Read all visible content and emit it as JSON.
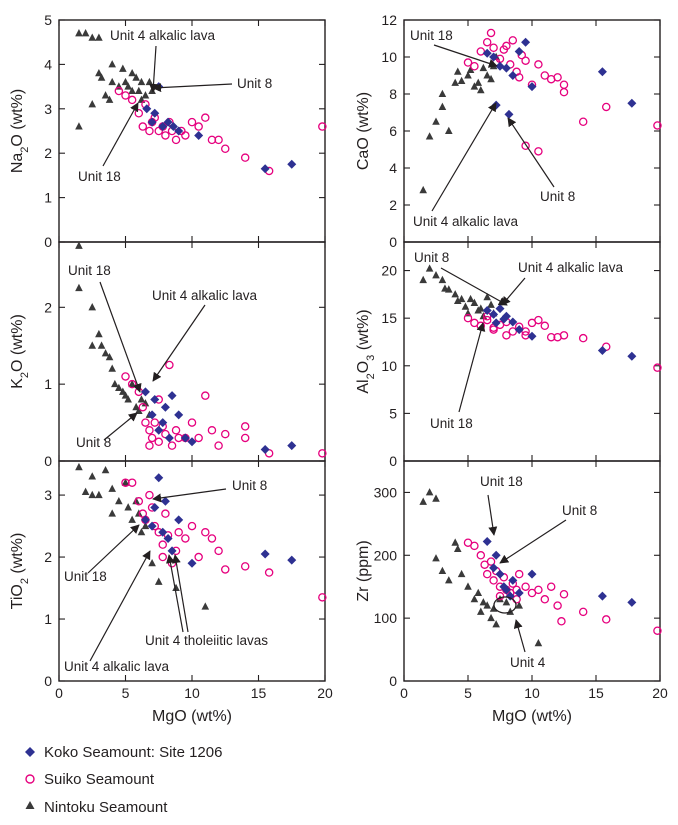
{
  "colors": {
    "koko": "#2e3192",
    "suiko": "#e6007e",
    "nintoku": "#3a3a3a",
    "ink": "#231f20"
  },
  "legend": [
    {
      "label": "Koko Seamount: Site 1206",
      "marker": "diamond",
      "color": "#2e3192"
    },
    {
      "label": "Suiko Seamount",
      "marker": "open-circle",
      "color": "#e6007e"
    },
    {
      "label": "Nintoku Seamount",
      "marker": "triangle",
      "color": "#3a3a3a"
    }
  ],
  "chart_data": [
    {
      "type": "scatter",
      "id": "na2o",
      "xlabel": "",
      "ylabel": "Na2O (wt%)",
      "xlim": [
        0,
        20
      ],
      "ylim": [
        0,
        5
      ],
      "xticks": [
        0,
        5,
        10,
        15,
        20
      ],
      "yticks": [
        0,
        1,
        2,
        3,
        4,
        5
      ],
      "xticklabels": [],
      "yticklabels": [
        "0",
        "1",
        "2",
        "3",
        "4",
        "5"
      ],
      "series": [
        {
          "name": "Koko Seamount: Site 1206",
          "marker": "diamond",
          "x": [
            6.6,
            7.0,
            7.2,
            7.5,
            7.8,
            8.2,
            8.6,
            9.0,
            10.5,
            15.5,
            17.5
          ],
          "y": [
            3.0,
            2.7,
            2.9,
            3.5,
            2.6,
            2.7,
            2.6,
            2.5,
            2.4,
            1.65,
            1.75
          ]
        },
        {
          "name": "Suiko Seamount",
          "marker": "open-circle",
          "x": [
            4.5,
            5.0,
            5.5,
            6.0,
            6.3,
            6.5,
            6.8,
            7.0,
            7.2,
            7.5,
            7.8,
            8.0,
            8.3,
            8.5,
            8.8,
            9.2,
            9.5,
            10.0,
            10.5,
            11.0,
            11.5,
            12.0,
            12.5,
            14.0,
            15.8,
            19.8
          ],
          "y": [
            3.4,
            3.3,
            3.2,
            2.9,
            2.6,
            3.1,
            2.5,
            2.7,
            2.8,
            2.5,
            2.6,
            2.4,
            2.7,
            2.5,
            2.3,
            2.5,
            2.4,
            2.7,
            2.6,
            2.8,
            2.3,
            2.3,
            2.1,
            1.9,
            1.6,
            2.6
          ]
        },
        {
          "name": "Nintoku Seamount",
          "marker": "triangle",
          "x": [
            1.5,
            2.0,
            2.5,
            3.0,
            3.2,
            3.5,
            4.0,
            4.0,
            4.5,
            4.8,
            5.0,
            5.2,
            5.5,
            5.8,
            6.0,
            6.2,
            6.5,
            6.8,
            7.0,
            1.5,
            2.5,
            3.0,
            3.8,
            5.5,
            6.2
          ],
          "y": [
            4.7,
            4.7,
            4.6,
            4.6,
            3.7,
            3.3,
            3.6,
            4.0,
            3.5,
            3.9,
            3.6,
            3.5,
            3.8,
            3.7,
            3.4,
            3.6,
            3.3,
            3.6,
            3.4,
            2.6,
            3.1,
            3.8,
            3.2,
            3.4,
            3.2
          ]
        }
      ],
      "annotations": [
        "Unit 4 alkalic lava",
        "Unit 8",
        "Unit 18"
      ]
    },
    {
      "type": "scatter",
      "id": "cao",
      "xlabel": "",
      "ylabel": "CaO (wt%)",
      "xlim": [
        0,
        20
      ],
      "ylim": [
        0,
        12
      ],
      "xticks": [
        0,
        5,
        10,
        15,
        20
      ],
      "yticks": [
        0,
        2,
        4,
        6,
        8,
        10,
        12
      ],
      "xticklabels": [],
      "yticklabels": [
        "0",
        "2",
        "4",
        "6",
        "8",
        "10",
        "12"
      ],
      "series": [
        {
          "name": "Koko Seamount: Site 1206",
          "marker": "diamond",
          "x": [
            6.5,
            7.0,
            7.5,
            8.0,
            8.5,
            9.0,
            10.0,
            7.2,
            8.2,
            15.5,
            17.8,
            9.5
          ],
          "y": [
            10.2,
            10.0,
            9.5,
            9.4,
            9.0,
            10.3,
            8.4,
            7.4,
            6.9,
            9.2,
            7.5,
            10.8
          ]
        },
        {
          "name": "Suiko Seamount",
          "marker": "open-circle",
          "x": [
            5.0,
            5.5,
            6.0,
            6.5,
            6.8,
            7.0,
            7.2,
            7.5,
            7.8,
            8.0,
            8.3,
            8.5,
            8.8,
            9.0,
            9.2,
            9.5,
            10.0,
            10.5,
            11.0,
            11.5,
            12.0,
            12.5,
            12.5,
            14.0,
            15.8,
            19.8,
            9.5,
            10.5
          ],
          "y": [
            9.7,
            9.5,
            10.3,
            10.8,
            11.3,
            10.5,
            9.7,
            9.9,
            10.4,
            10.6,
            9.6,
            10.9,
            9.2,
            8.9,
            10.1,
            9.8,
            8.5,
            9.6,
            9.0,
            8.8,
            8.9,
            8.5,
            8.1,
            6.5,
            7.3,
            6.3,
            5.2,
            4.9
          ]
        },
        {
          "name": "Nintoku Seamount",
          "marker": "triangle",
          "x": [
            1.5,
            2.0,
            2.5,
            3.0,
            3.0,
            3.5,
            4.0,
            4.2,
            4.5,
            5.0,
            5.2,
            5.5,
            5.8,
            6.0,
            6.2,
            6.5,
            6.8,
            7.0,
            7.2
          ],
          "y": [
            2.8,
            5.7,
            6.5,
            7.3,
            8.0,
            6.0,
            8.6,
            9.2,
            8.7,
            9.0,
            9.3,
            8.4,
            8.6,
            8.2,
            9.4,
            9.0,
            8.8,
            9.5,
            10.0
          ]
        }
      ],
      "annotations": [
        "Unit 18",
        "Unit 8",
        "Unit 4 alkalic lava"
      ]
    },
    {
      "type": "scatter",
      "id": "k2o",
      "xlabel": "",
      "ylabel": "K2O (wt%)",
      "xlim": [
        0,
        20
      ],
      "ylim": [
        0,
        2.85
      ],
      "xticks": [
        0,
        5,
        10,
        15,
        20
      ],
      "yticks": [
        0,
        1,
        2
      ],
      "xticklabels": [],
      "yticklabels": [
        "0",
        "1",
        "2"
      ],
      "series": [
        {
          "name": "Koko Seamount: Site 1206",
          "marker": "diamond",
          "x": [
            6.5,
            7.0,
            7.2,
            7.5,
            7.8,
            8.0,
            8.3,
            8.5,
            9.0,
            9.5,
            10.0,
            15.5,
            17.5
          ],
          "y": [
            0.9,
            0.6,
            0.8,
            0.4,
            0.5,
            0.7,
            0.3,
            0.85,
            0.6,
            0.3,
            0.25,
            0.15,
            0.2
          ]
        },
        {
          "name": "Suiko Seamount",
          "marker": "open-circle",
          "x": [
            5.0,
            5.5,
            6.0,
            6.3,
            6.5,
            6.8,
            7.0,
            7.2,
            7.5,
            7.8,
            8.0,
            8.3,
            8.5,
            8.8,
            9.0,
            9.5,
            10.0,
            10.5,
            11.0,
            11.5,
            12.0,
            12.5,
            14.0,
            14.0,
            15.8,
            19.8,
            6.8,
            7.5
          ],
          "y": [
            1.1,
            1.0,
            0.9,
            0.7,
            0.5,
            0.4,
            0.3,
            0.5,
            0.8,
            0.45,
            0.35,
            1.25,
            0.2,
            0.4,
            0.3,
            0.3,
            0.5,
            0.3,
            0.85,
            0.4,
            0.2,
            0.35,
            0.45,
            0.3,
            0.1,
            0.1,
            0.2,
            0.25
          ]
        },
        {
          "name": "Nintoku Seamount",
          "marker": "triangle",
          "x": [
            1.5,
            1.5,
            2.5,
            2.5,
            3.0,
            3.2,
            3.5,
            3.8,
            4.0,
            4.2,
            4.5,
            4.8,
            5.0,
            5.2,
            5.5,
            5.8,
            6.0,
            6.2,
            6.5,
            6.8
          ],
          "y": [
            2.8,
            2.25,
            2.0,
            1.5,
            1.65,
            1.5,
            1.4,
            1.35,
            1.2,
            1.0,
            0.95,
            0.9,
            0.85,
            0.8,
            1.0,
            0.7,
            0.65,
            0.8,
            0.75,
            0.6
          ]
        }
      ],
      "annotations": [
        "Unit 18",
        "Unit 4 alkalic lava",
        "Unit 8"
      ]
    },
    {
      "type": "scatter",
      "id": "al2o3",
      "xlabel": "",
      "ylabel": "Al2O3 (wt%)",
      "xlim": [
        0,
        20
      ],
      "ylim": [
        0,
        23
      ],
      "xticks": [
        0,
        5,
        10,
        15,
        20
      ],
      "yticks": [
        0,
        5,
        10,
        15,
        20
      ],
      "xticklabels": [],
      "yticklabels": [
        "0",
        "5",
        "10",
        "15",
        "20"
      ],
      "series": [
        {
          "name": "Koko Seamount: Site 1206",
          "marker": "diamond",
          "x": [
            6.5,
            7.0,
            7.2,
            7.5,
            7.8,
            8.0,
            8.5,
            9.0,
            10.0,
            15.5,
            17.8
          ],
          "y": [
            15.8,
            15.4,
            14.5,
            16.0,
            14.9,
            15.2,
            14.6,
            13.8,
            13.1,
            11.6,
            11.0
          ]
        },
        {
          "name": "Suiko Seamount",
          "marker": "open-circle",
          "x": [
            5.0,
            5.5,
            6.0,
            6.5,
            7.0,
            7.5,
            8.0,
            8.5,
            9.0,
            9.5,
            10.0,
            10.5,
            11.0,
            11.5,
            12.0,
            12.5,
            14.0,
            15.8,
            19.8,
            7.0,
            8.0,
            9.5,
            6.5
          ],
          "y": [
            15.0,
            14.5,
            14.2,
            14.8,
            13.8,
            14.3,
            14.6,
            13.6,
            14.1,
            13.2,
            14.5,
            14.8,
            14.2,
            13.0,
            13.0,
            13.2,
            12.9,
            12.0,
            9.8,
            14.0,
            13.2,
            13.6,
            15.2
          ]
        },
        {
          "name": "Nintoku Seamount",
          "marker": "triangle",
          "x": [
            1.5,
            2.0,
            2.5,
            3.0,
            3.2,
            3.5,
            4.0,
            4.2,
            4.5,
            4.8,
            5.0,
            5.2,
            5.5,
            5.8,
            6.0,
            6.2,
            6.5,
            6.8,
            7.0
          ],
          "y": [
            19.0,
            20.2,
            19.5,
            19.0,
            18.1,
            18.0,
            17.5,
            16.8,
            17.0,
            16.2,
            15.5,
            17.0,
            16.6,
            15.8,
            16.0,
            15.2,
            17.2,
            16.4,
            15.5
          ]
        }
      ],
      "annotations": [
        "Unit 8",
        "Unit 4 alkalic lava",
        "Unit 18"
      ]
    },
    {
      "type": "scatter",
      "id": "tio2",
      "xlabel": "MgO (wt%)",
      "ylabel": "TiO2 (wt%)",
      "xlim": [
        0,
        20
      ],
      "ylim": [
        0,
        3.55
      ],
      "xticks": [
        0,
        5,
        10,
        15,
        20
      ],
      "yticks": [
        0,
        1,
        2,
        3
      ],
      "xticklabels": [
        "0",
        "5",
        "10",
        "15",
        "20"
      ],
      "yticklabels": [
        "0",
        "1",
        "2",
        "3"
      ],
      "series": [
        {
          "name": "Koko Seamount: Site 1206",
          "marker": "diamond",
          "x": [
            6.5,
            7.0,
            7.2,
            7.5,
            7.8,
            8.0,
            8.2,
            8.5,
            9.0,
            10.0,
            15.5,
            17.5
          ],
          "y": [
            2.6,
            2.5,
            2.8,
            3.28,
            2.4,
            2.9,
            2.3,
            2.1,
            2.6,
            1.9,
            2.05,
            1.95
          ]
        },
        {
          "name": "Suiko Seamount",
          "marker": "open-circle",
          "x": [
            5.0,
            5.5,
            6.0,
            6.5,
            6.8,
            7.0,
            7.2,
            7.5,
            7.8,
            8.0,
            8.2,
            8.5,
            8.8,
            9.0,
            9.5,
            10.0,
            10.5,
            11.0,
            11.5,
            12.0,
            12.5,
            14.0,
            15.8,
            19.8,
            6.3,
            7.8
          ],
          "y": [
            3.2,
            3.2,
            2.9,
            2.6,
            3.0,
            2.8,
            2.5,
            2.4,
            2.2,
            2.7,
            2.35,
            1.9,
            2.1,
            2.4,
            2.3,
            2.5,
            2.0,
            2.4,
            2.3,
            2.1,
            1.8,
            1.85,
            1.75,
            1.35,
            2.7,
            2.0
          ]
        },
        {
          "name": "Nintoku Seamount",
          "marker": "triangle",
          "x": [
            1.5,
            2.0,
            2.5,
            3.0,
            3.5,
            4.0,
            4.5,
            5.0,
            5.2,
            5.5,
            5.8,
            6.0,
            6.2,
            6.5,
            7.0,
            7.5,
            2.5,
            4.0,
            8.8,
            11.0
          ],
          "y": [
            3.45,
            3.05,
            3.3,
            3.0,
            3.4,
            3.1,
            2.9,
            3.2,
            2.8,
            2.6,
            2.9,
            2.7,
            2.4,
            2.5,
            1.9,
            1.6,
            3.0,
            2.7,
            1.5,
            1.2
          ]
        }
      ],
      "annotations": [
        "Unit 8",
        "Unit 18",
        "Unit 4 tholeiitic lavas",
        "Unit 4 alkalic lava"
      ]
    },
    {
      "type": "scatter",
      "id": "zr",
      "xlabel": "MgO (wt%)",
      "ylabel": "Zr (ppm)",
      "xlim": [
        0,
        20
      ],
      "ylim": [
        0,
        350
      ],
      "xticks": [
        0,
        5,
        10,
        15,
        20
      ],
      "yticks": [
        0,
        100,
        200,
        300
      ],
      "xticklabels": [
        "0",
        "5",
        "10",
        "15",
        "20"
      ],
      "yticklabels": [
        "0",
        "100",
        "200",
        "300"
      ],
      "series": [
        {
          "name": "Koko Seamount: Site 1206",
          "marker": "diamond",
          "x": [
            6.5,
            7.0,
            7.2,
            7.5,
            7.8,
            8.0,
            8.3,
            8.5,
            9.0,
            10.0,
            15.5,
            17.8
          ],
          "y": [
            222,
            180,
            200,
            170,
            150,
            145,
            135,
            160,
            140,
            170,
            135,
            125
          ]
        },
        {
          "name": "Suiko Seamount",
          "marker": "open-circle",
          "x": [
            5.0,
            5.5,
            6.0,
            6.3,
            6.5,
            6.8,
            7.0,
            7.2,
            7.5,
            7.8,
            8.0,
            8.3,
            8.5,
            8.8,
            9.0,
            9.5,
            10.0,
            10.5,
            11.0,
            11.5,
            12.0,
            12.5,
            14.0,
            15.8,
            19.8,
            7.5,
            8.8,
            12.3
          ],
          "y": [
            220,
            215,
            200,
            185,
            170,
            190,
            160,
            175,
            150,
            165,
            145,
            140,
            155,
            130,
            170,
            150,
            140,
            145,
            130,
            150,
            120,
            138,
            110,
            98,
            80,
            135,
            145,
            95
          ]
        },
        {
          "name": "Nintoku Seamount",
          "marker": "triangle",
          "x": [
            1.5,
            2.0,
            2.5,
            3.0,
            3.5,
            4.0,
            4.5,
            5.0,
            5.5,
            5.8,
            6.0,
            6.2,
            6.5,
            6.8,
            7.0,
            7.2,
            7.5,
            8.0,
            8.3,
            9.0,
            2.5,
            4.2,
            10.5
          ],
          "y": [
            285,
            300,
            195,
            175,
            160,
            220,
            170,
            150,
            130,
            140,
            110,
            125,
            120,
            100,
            115,
            90,
            130,
            125,
            110,
            120,
            290,
            210,
            60
          ]
        }
      ],
      "annotations": [
        "Unit 18",
        "Unit 8",
        "Unit 4"
      ]
    }
  ]
}
